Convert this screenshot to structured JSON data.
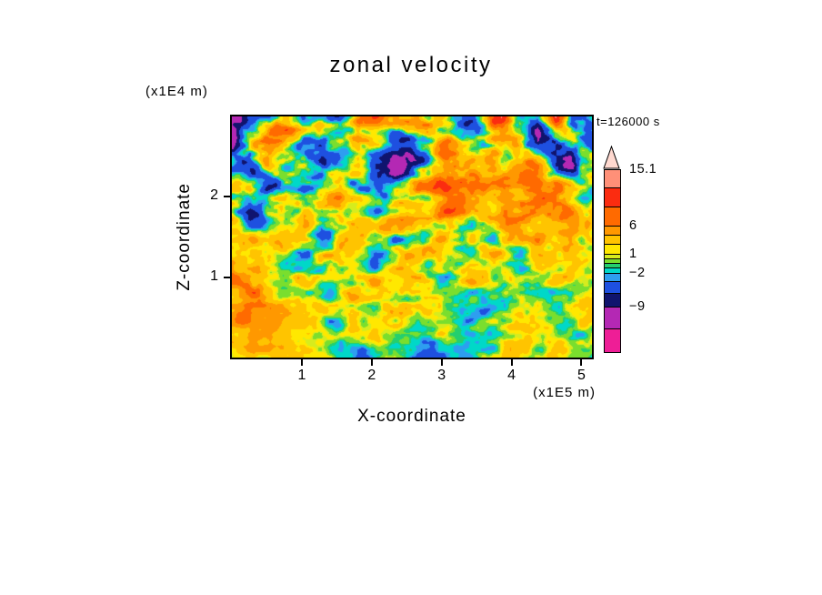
{
  "title": "zonal velocity",
  "timestamp": "t=126000 s",
  "axes": {
    "x": {
      "label": "X-coordinate",
      "unit": "(x1E5 m)",
      "range": [
        0,
        5.15
      ],
      "ticks": [
        1,
        2,
        3,
        4,
        5
      ]
    },
    "y": {
      "label": "Z-coordinate",
      "unit": "(x1E4 m)",
      "range": [
        0,
        3.0
      ],
      "ticks": [
        1,
        2
      ]
    }
  },
  "colorbar": {
    "arrow_color": "#ffd9d0",
    "segments": [
      {
        "color": "#ff9078",
        "h": 20,
        "label": "15.1"
      },
      {
        "color": "#fb2c10",
        "h": 21,
        "label": ""
      },
      {
        "color": "#ff6a00",
        "h": 21,
        "label": ""
      },
      {
        "color": "#ff9800",
        "h": 10,
        "label": "6"
      },
      {
        "color": "#ffc400",
        "h": 10,
        "label": ""
      },
      {
        "color": "#ffe800",
        "h": 11,
        "label": ""
      },
      {
        "color": "#d6ec1e",
        "h": 5,
        "label": "1"
      },
      {
        "color": "#7ade2e",
        "h": 5,
        "label": ""
      },
      {
        "color": "#24cf6e",
        "h": 5,
        "label": ""
      },
      {
        "color": "#00d8c8",
        "h": 6,
        "label": ""
      },
      {
        "color": "#2e9ef0",
        "h": 9,
        "label": "−2"
      },
      {
        "color": "#1e50e0",
        "h": 13,
        "label": ""
      },
      {
        "color": "#10146e",
        "h": 15,
        "label": ""
      },
      {
        "color": "#b428b4",
        "h": 24,
        "label": "−9"
      },
      {
        "color": "#ee1e96",
        "h": 25,
        "label": ""
      }
    ]
  },
  "chart_data": {
    "type": "heatmap",
    "title": "zonal velocity",
    "xlabel": "X-coordinate (x1E5 m)",
    "ylabel": "Z-coordinate (x1E4 m)",
    "annotation": "t=126000 s",
    "x_range": [
      0,
      5.15
    ],
    "z_range": [
      0,
      3.0
    ],
    "colorbar_labels": [
      "15.1",
      "6",
      "1",
      "−2",
      "−9"
    ],
    "levels": [
      -12,
      -9,
      -6,
      -3,
      -2,
      -1,
      -0.5,
      0.5,
      1,
      2,
      4,
      6,
      9,
      12,
      15.1
    ],
    "band_colors": [
      "#ee1e96",
      "#b428b4",
      "#10146e",
      "#1e50e0",
      "#2e9ef0",
      "#00d8c8",
      "#24cf6e",
      "#7ade2e",
      "#d6ec1e",
      "#ffe800",
      "#ffc400",
      "#ff9800",
      "#ff6a00",
      "#fb2c10",
      "#ff9078",
      "#ffd9d0"
    ],
    "grid": {
      "note": "estimated zonal velocity values, rows top(z=3.0) to bottom(z=0), cols x=0..5.15",
      "cols": 21,
      "rows": 11,
      "values": [
        [
          -7.5,
          -4.5,
          -1.5,
          5.5,
          1.5,
          1.5,
          -7.5,
          3,
          5.5,
          10,
          10,
          3,
          0,
          -1.5,
          1.5,
          10,
          3,
          -7.5,
          10,
          -7.5,
          -4.5
        ],
        [
          -7.5,
          1.5,
          5.5,
          3,
          -1.5,
          -4.5,
          1.5,
          5.5,
          1.5,
          -7.5,
          -8.5,
          -1.5,
          5.5,
          1.5,
          0,
          5.5,
          1.5,
          -7.5,
          -4.5,
          1.5,
          -1.5
        ],
        [
          1.5,
          -4.5,
          5.5,
          -1.5,
          3,
          -7.5,
          -1.5,
          3,
          -4.5,
          -8.8,
          -7.5,
          0,
          5.5,
          5.5,
          3,
          1.5,
          5.5,
          5.5,
          -4.5,
          -7.5,
          0
        ],
        [
          -1.5,
          5.5,
          -4.5,
          1.5,
          -4.5,
          1.5,
          5.5,
          -1.5,
          -8.5,
          -4.5,
          1.5,
          5.5,
          8,
          5.5,
          5.5,
          5.5,
          5.5,
          3,
          5.5,
          1.5,
          -1.5
        ],
        [
          3,
          -7.5,
          1.5,
          -1.5,
          5.5,
          -1.5,
          1.5,
          3,
          0,
          3,
          5.5,
          3,
          5.5,
          5.5,
          3,
          5.5,
          5.5,
          5.5,
          3,
          5.5,
          3
        ],
        [
          1.5,
          3,
          -1.5,
          3,
          1.5,
          -4.5,
          1.5,
          3,
          1.5,
          0,
          1.5,
          3,
          1.5,
          -1.5,
          1.5,
          3,
          3,
          1.5,
          0,
          1.5,
          3
        ],
        [
          5.5,
          1.5,
          3,
          0,
          -1.5,
          1.5,
          3,
          1.5,
          0,
          1.5,
          3,
          1.5,
          -1.5,
          1.5,
          1.5,
          1.5,
          -1.5,
          0,
          1.5,
          3,
          1.5
        ],
        [
          5.5,
          5.5,
          1.5,
          1.5,
          3,
          0,
          1.5,
          3,
          1.5,
          1.5,
          1.5,
          1.5,
          0,
          1.5,
          1.5,
          -1.5,
          -1.5,
          1.5,
          1.5,
          1.5,
          3
        ],
        [
          5.5,
          5.5,
          3,
          1.5,
          1.5,
          1.5,
          0,
          1.5,
          3,
          1.5,
          0,
          1.5,
          1.5,
          0,
          -1.5,
          -1.5,
          1.5,
          1.5,
          0,
          1.5,
          1.5
        ],
        [
          3,
          5.5,
          5.5,
          1.5,
          1.5,
          0,
          -1.5,
          0,
          1.5,
          1.5,
          1.5,
          0,
          1.5,
          -1.5,
          -1.5,
          0,
          1.5,
          3,
          1.5,
          0,
          1.5
        ],
        [
          1.5,
          3,
          1.5,
          1.5,
          0,
          1.5,
          -1.5,
          -4.5,
          0,
          1.5,
          -1.5,
          -4.5,
          -1.5,
          0,
          1.5,
          3,
          1.5,
          0,
          1.5,
          1.5,
          0
        ]
      ]
    }
  }
}
